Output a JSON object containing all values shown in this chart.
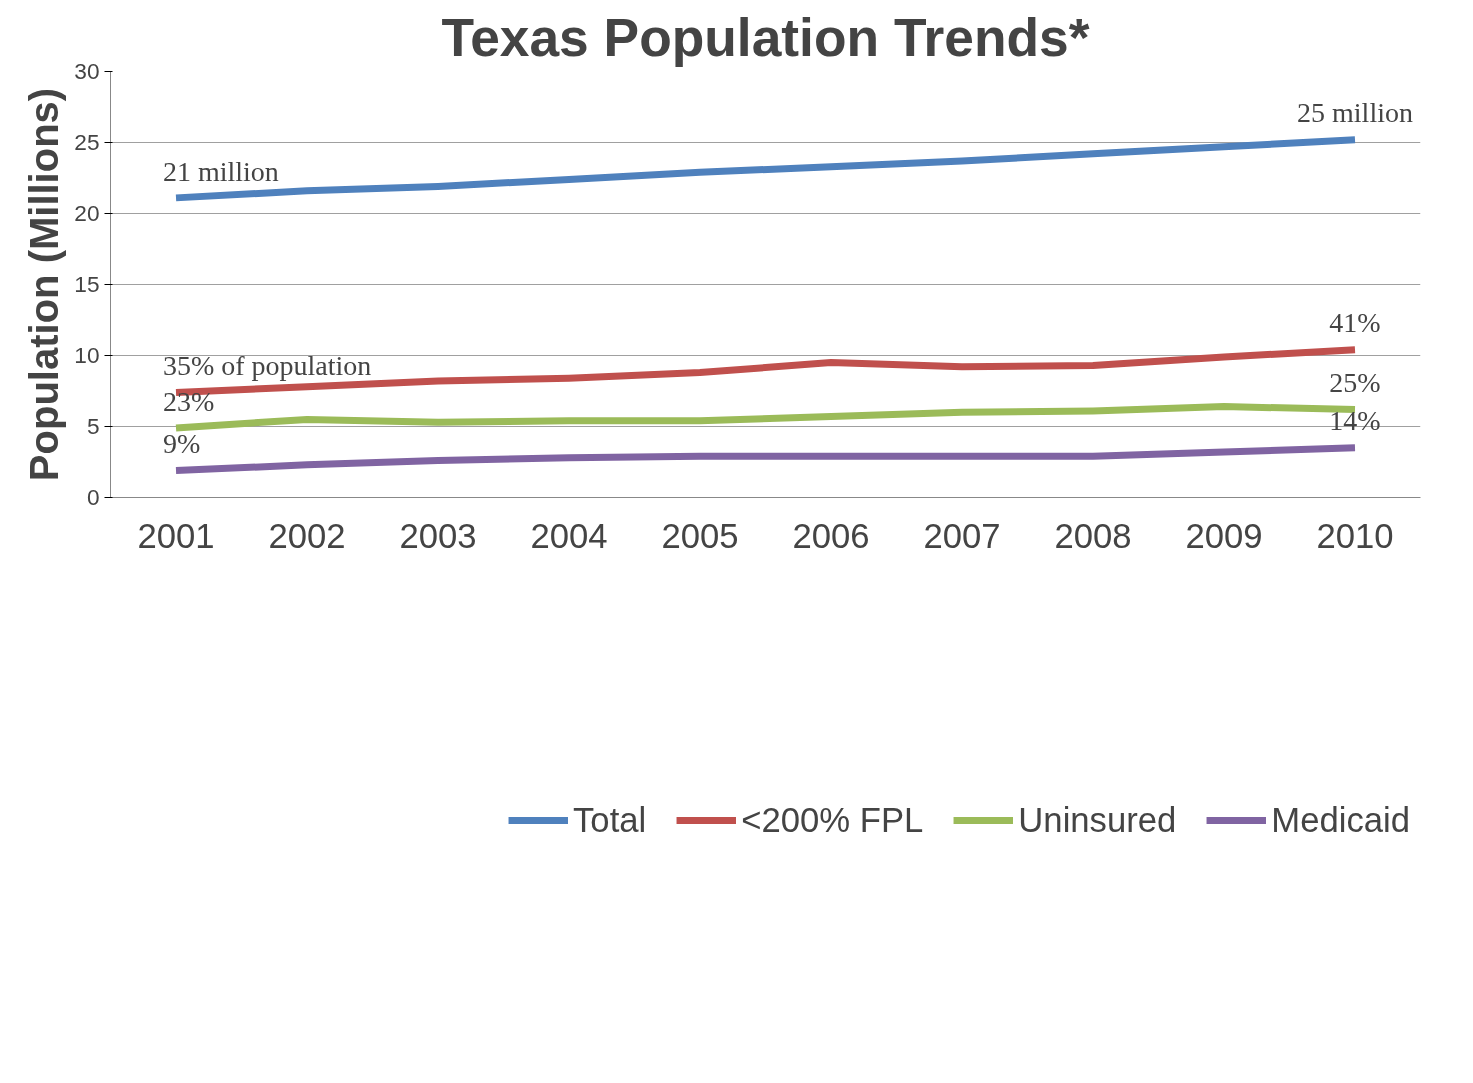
{
  "chart_data": {
    "type": "line",
    "title": "Texas Population Trends*",
    "ylabel": "Population (Millions)",
    "categories": [
      "2001",
      "2002",
      "2003",
      "2004",
      "2005",
      "2006",
      "2007",
      "2008",
      "2009",
      "2010"
    ],
    "series": [
      {
        "name": "Total",
        "color": "#4f81bd",
        "values": [
          21.1,
          21.6,
          21.9,
          22.4,
          22.9,
          23.3,
          23.7,
          24.2,
          24.7,
          25.2
        ]
      },
      {
        "name": "<200% FPL",
        "color": "#c0504d",
        "values": [
          7.4,
          7.8,
          8.2,
          8.4,
          8.8,
          9.5,
          9.2,
          9.3,
          9.9,
          10.4
        ]
      },
      {
        "name": "Uninsured",
        "color": "#9bbb59",
        "values": [
          4.9,
          5.5,
          5.3,
          5.4,
          5.4,
          5.7,
          6.0,
          6.1,
          6.4,
          6.2
        ]
      },
      {
        "name": "Medicaid",
        "color": "#8064a2",
        "values": [
          1.9,
          2.3,
          2.6,
          2.8,
          2.9,
          2.9,
          2.9,
          2.9,
          3.2,
          3.5
        ]
      }
    ],
    "ylim": [
      0,
      30
    ],
    "yticks": [
      0,
      5,
      10,
      15,
      20,
      25,
      30
    ],
    "grid": "y",
    "legend": "bottom",
    "marker": "none",
    "line_style": "solid",
    "annotations": [
      {
        "text": "21 million",
        "x": "2001",
        "y": 21.1
      },
      {
        "text": "25 million",
        "x": "2010",
        "y": 25.2
      },
      {
        "text": "35% of population",
        "x": "2001",
        "y": 7.4
      },
      {
        "text": "41%",
        "x": "2010",
        "y": 10.4
      },
      {
        "text": "23%",
        "x": "2001",
        "y": 4.9
      },
      {
        "text": "25%",
        "x": "2010",
        "y": 6.2
      },
      {
        "text": "9%",
        "x": "2001",
        "y": 1.9
      },
      {
        "text": "14%",
        "x": "2010",
        "y": 3.5
      }
    ]
  }
}
